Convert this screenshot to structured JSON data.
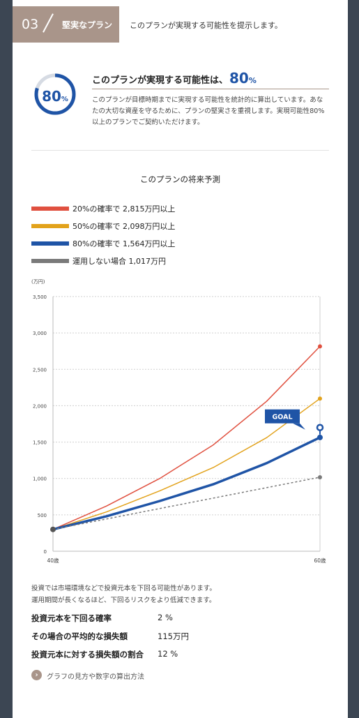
{
  "header": {
    "number": "03",
    "name": "堅実なプラン",
    "description": "このプランが実現する可能性を提示します。"
  },
  "probability": {
    "ring_value": "80",
    "ring_unit": "%",
    "ring_fraction": 0.8,
    "title_prefix": "このプランが実現する可能性は、",
    "title_value": "80",
    "title_unit": "%",
    "description": "このプランが目標時期までに実現する可能性を統計的に算出しています。あなたの大切な資産を守るために、プランの堅実さを重視します。実現可能性80%以上のプランでご契約いただけます。"
  },
  "forecast": {
    "title": "このプランの将来予測",
    "legend": [
      {
        "label": "20%の確率で 2,815万円以上",
        "color": "#e0503f"
      },
      {
        "label": "50%の確率で 2,098万円以上",
        "color": "#e2a21b"
      },
      {
        "label": "80%の確率で 1,564万円以上",
        "color": "#1f54a6"
      },
      {
        "label": "運用しない場合 1,017万円",
        "color": "#7a7a7a"
      }
    ],
    "goal_label": "GOAL"
  },
  "chart_data": {
    "type": "line",
    "yunit": "(万円)",
    "ylim": [
      0,
      3500
    ],
    "yticks": [
      0,
      500,
      1000,
      1500,
      2000,
      2500,
      3000,
      3500
    ],
    "ytick_labels": [
      "0",
      "500",
      "1,000",
      "1,500",
      "2,000",
      "2,500",
      "3,000",
      "3,500"
    ],
    "xticks": [
      "40歳",
      "60歳"
    ],
    "x": [
      40,
      44,
      48,
      52,
      56,
      60
    ],
    "grid": true,
    "series": [
      {
        "name": "20%の確率で 2,815万円以上",
        "color": "#e0503f",
        "values": [
          300,
          620,
          1000,
          1460,
          2060,
          2815
        ],
        "width": 1.5,
        "style": "solid"
      },
      {
        "name": "50%の確率で 2,098万円以上",
        "color": "#e2a21b",
        "values": [
          300,
          540,
          830,
          1150,
          1560,
          2098
        ],
        "width": 1.5,
        "style": "solid"
      },
      {
        "name": "80%の確率で 1,564万円以上",
        "color": "#1f54a6",
        "values": [
          300,
          480,
          690,
          920,
          1210,
          1564
        ],
        "width": 3.5,
        "style": "solid"
      },
      {
        "name": "運用しない場合 1,017万円",
        "color": "#7a7a7a",
        "values": [
          300,
          443,
          587,
          730,
          874,
          1017
        ],
        "width": 1.5,
        "style": "dashed"
      }
    ],
    "goal": {
      "label": "GOAL",
      "x": 60,
      "y": 1700
    }
  },
  "risk": {
    "note_line1": "投資では市場環境などで投資元本を下回る可能性があります。",
    "note_line2": "運用期間が長くなるほど、下回るリスクをより低減できます。",
    "stats": [
      {
        "label": "投資元本を下回る確率",
        "value": "2 %"
      },
      {
        "label": "その場合の平均的な損失額",
        "value": "115万円"
      },
      {
        "label": "投資元本に対する損失額の割合",
        "value": "12 %"
      }
    ]
  },
  "help": {
    "icon": "chevron-right-icon",
    "label": "グラフの見方や数字の算出方法"
  }
}
